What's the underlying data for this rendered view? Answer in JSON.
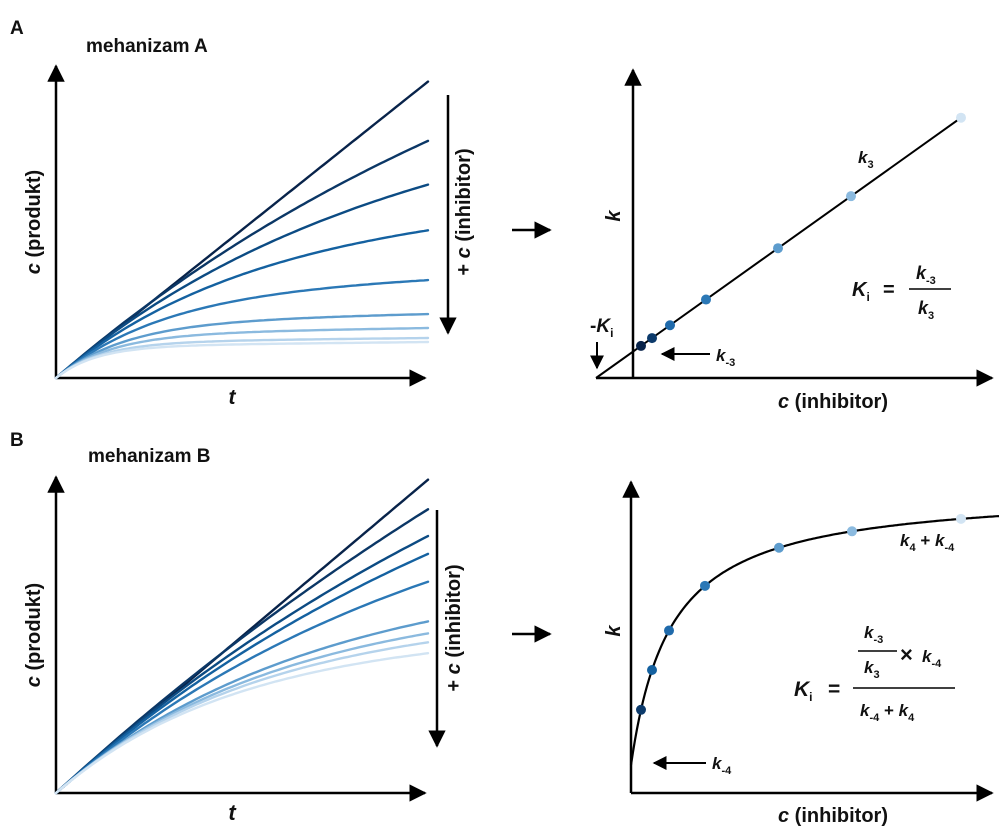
{
  "panel_a": {
    "letter": "A",
    "title": "mehanizam A",
    "left_plot": {
      "ylabel_var": "c",
      "ylabel_text": " (produkt)",
      "xlabel": "t",
      "arrow_label_prefix": "+ ",
      "arrow_label_var": "c",
      "arrow_label_text": " (inhibitor)"
    },
    "right_plot": {
      "ylabel": "k",
      "xlabel_var": "c",
      "xlabel_text": " (inhibitor)",
      "line_label": "k",
      "line_label_sub": "3",
      "intercept_label": "k",
      "intercept_label_sub": "-3",
      "ki_label_prefix": "-",
      "ki_label": "K",
      "ki_label_sub": "i",
      "eq_lhs": "K",
      "eq_lhs_sub": "i",
      "eq_sign": "=",
      "eq_num": "k",
      "eq_num_sub": "-3",
      "eq_den": "k",
      "eq_den_sub": "3"
    }
  },
  "panel_b": {
    "letter": "B",
    "title": "mehanizam B",
    "left_plot": {
      "ylabel_var": "c",
      "ylabel_text": " (produkt)",
      "xlabel": "t",
      "arrow_label_prefix": "+ ",
      "arrow_label_var": "c",
      "arrow_label_text": " (inhibitor)"
    },
    "right_plot": {
      "ylabel": "k",
      "xlabel_var": "c",
      "xlabel_text": " (inhibitor)",
      "plateau_label_a": "k",
      "plateau_label_a_sub": "4",
      "plateau_label_plus": " + ",
      "plateau_label_b": "k",
      "plateau_label_b_sub": "-4",
      "intercept_label": "k",
      "intercept_label_sub": "-4",
      "eq_lhs": "K",
      "eq_lhs_sub": "i",
      "eq_sign": "=",
      "eq_inner_num": "k",
      "eq_inner_num_sub": "-3",
      "eq_inner_den": "k",
      "eq_inner_den_sub": "3",
      "eq_times": "×",
      "eq_times_k": "k",
      "eq_times_k_sub": "-4",
      "eq_den_a": "k",
      "eq_den_a_sub": "-4",
      "eq_den_plus": " + ",
      "eq_den_b": "k",
      "eq_den_b_sub": "4"
    }
  },
  "colors": {
    "darkest": "#08234a",
    "series": [
      "#08234a",
      "#0b3766",
      "#0c4b83",
      "#1461a0",
      "#2b78b6",
      "#5d9ccd",
      "#8bbadf",
      "#b5d3ec",
      "#d2e4f3"
    ]
  }
}
